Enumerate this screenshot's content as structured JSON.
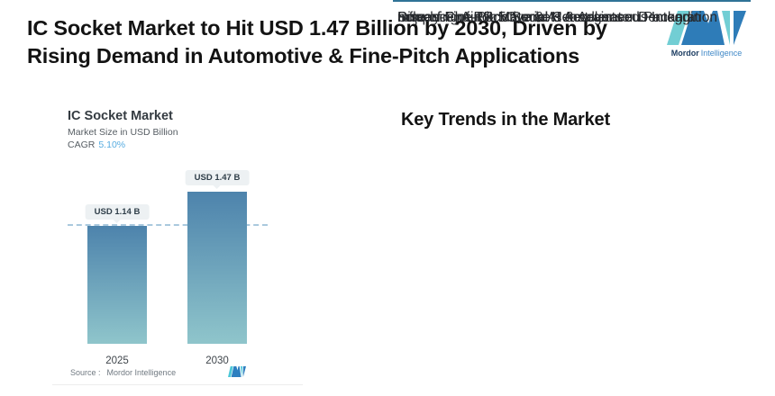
{
  "header": {
    "title_lines": [
      "IC Socket Market to Hit USD 1.47 Billion by 2030, Driven by",
      "Rising Demand in Automotive & Fine-Pitch Applications"
    ],
    "brand": {
      "name_bold": "Mordor",
      "name_light": "Intelligence"
    }
  },
  "chart": {
    "title": "IC Socket Market",
    "subtitle": "Market Size in USD Billion",
    "cagr_label": "CAGR",
    "cagr_value": "5.10%",
    "source_prefix": "Source :",
    "source_name": "Mordor Intelligence"
  },
  "chart_data": {
    "type": "bar",
    "title": "IC Socket Market",
    "ylabel": "Market Size in USD Billion",
    "categories": [
      "2025",
      "2030"
    ],
    "values": [
      1.14,
      1.47
    ],
    "value_labels": [
      "USD 1.14 B",
      "USD 1.47 B"
    ],
    "cagr_percent": 5.1,
    "ylim": [
      0,
      1.6
    ],
    "grid": false,
    "reference_line": {
      "style": "dashed",
      "value": 1.14
    },
    "bar_gradient": [
      "#4d83ac",
      "#8fc5cb"
    ],
    "source": "Mordor Intelligence"
  },
  "trends": {
    "heading": "Key Trends in the Market",
    "items": [
      "Rise of Fine-Pitch Sockets & Advanced Packagin",
      "ncreasing Automotive & AI Accelerator Demand",
      "Influence of RF, 5G, and Heterogeneous Integration",
      "Supply-Chain & Material Constraints"
    ]
  },
  "colors": {
    "logo_blue": "#2e7cb8",
    "logo_teal": "#72ced4",
    "cagr_value": "#57ace0",
    "trend_rule": "#2f7396",
    "dashed_line": "#aac9de"
  }
}
